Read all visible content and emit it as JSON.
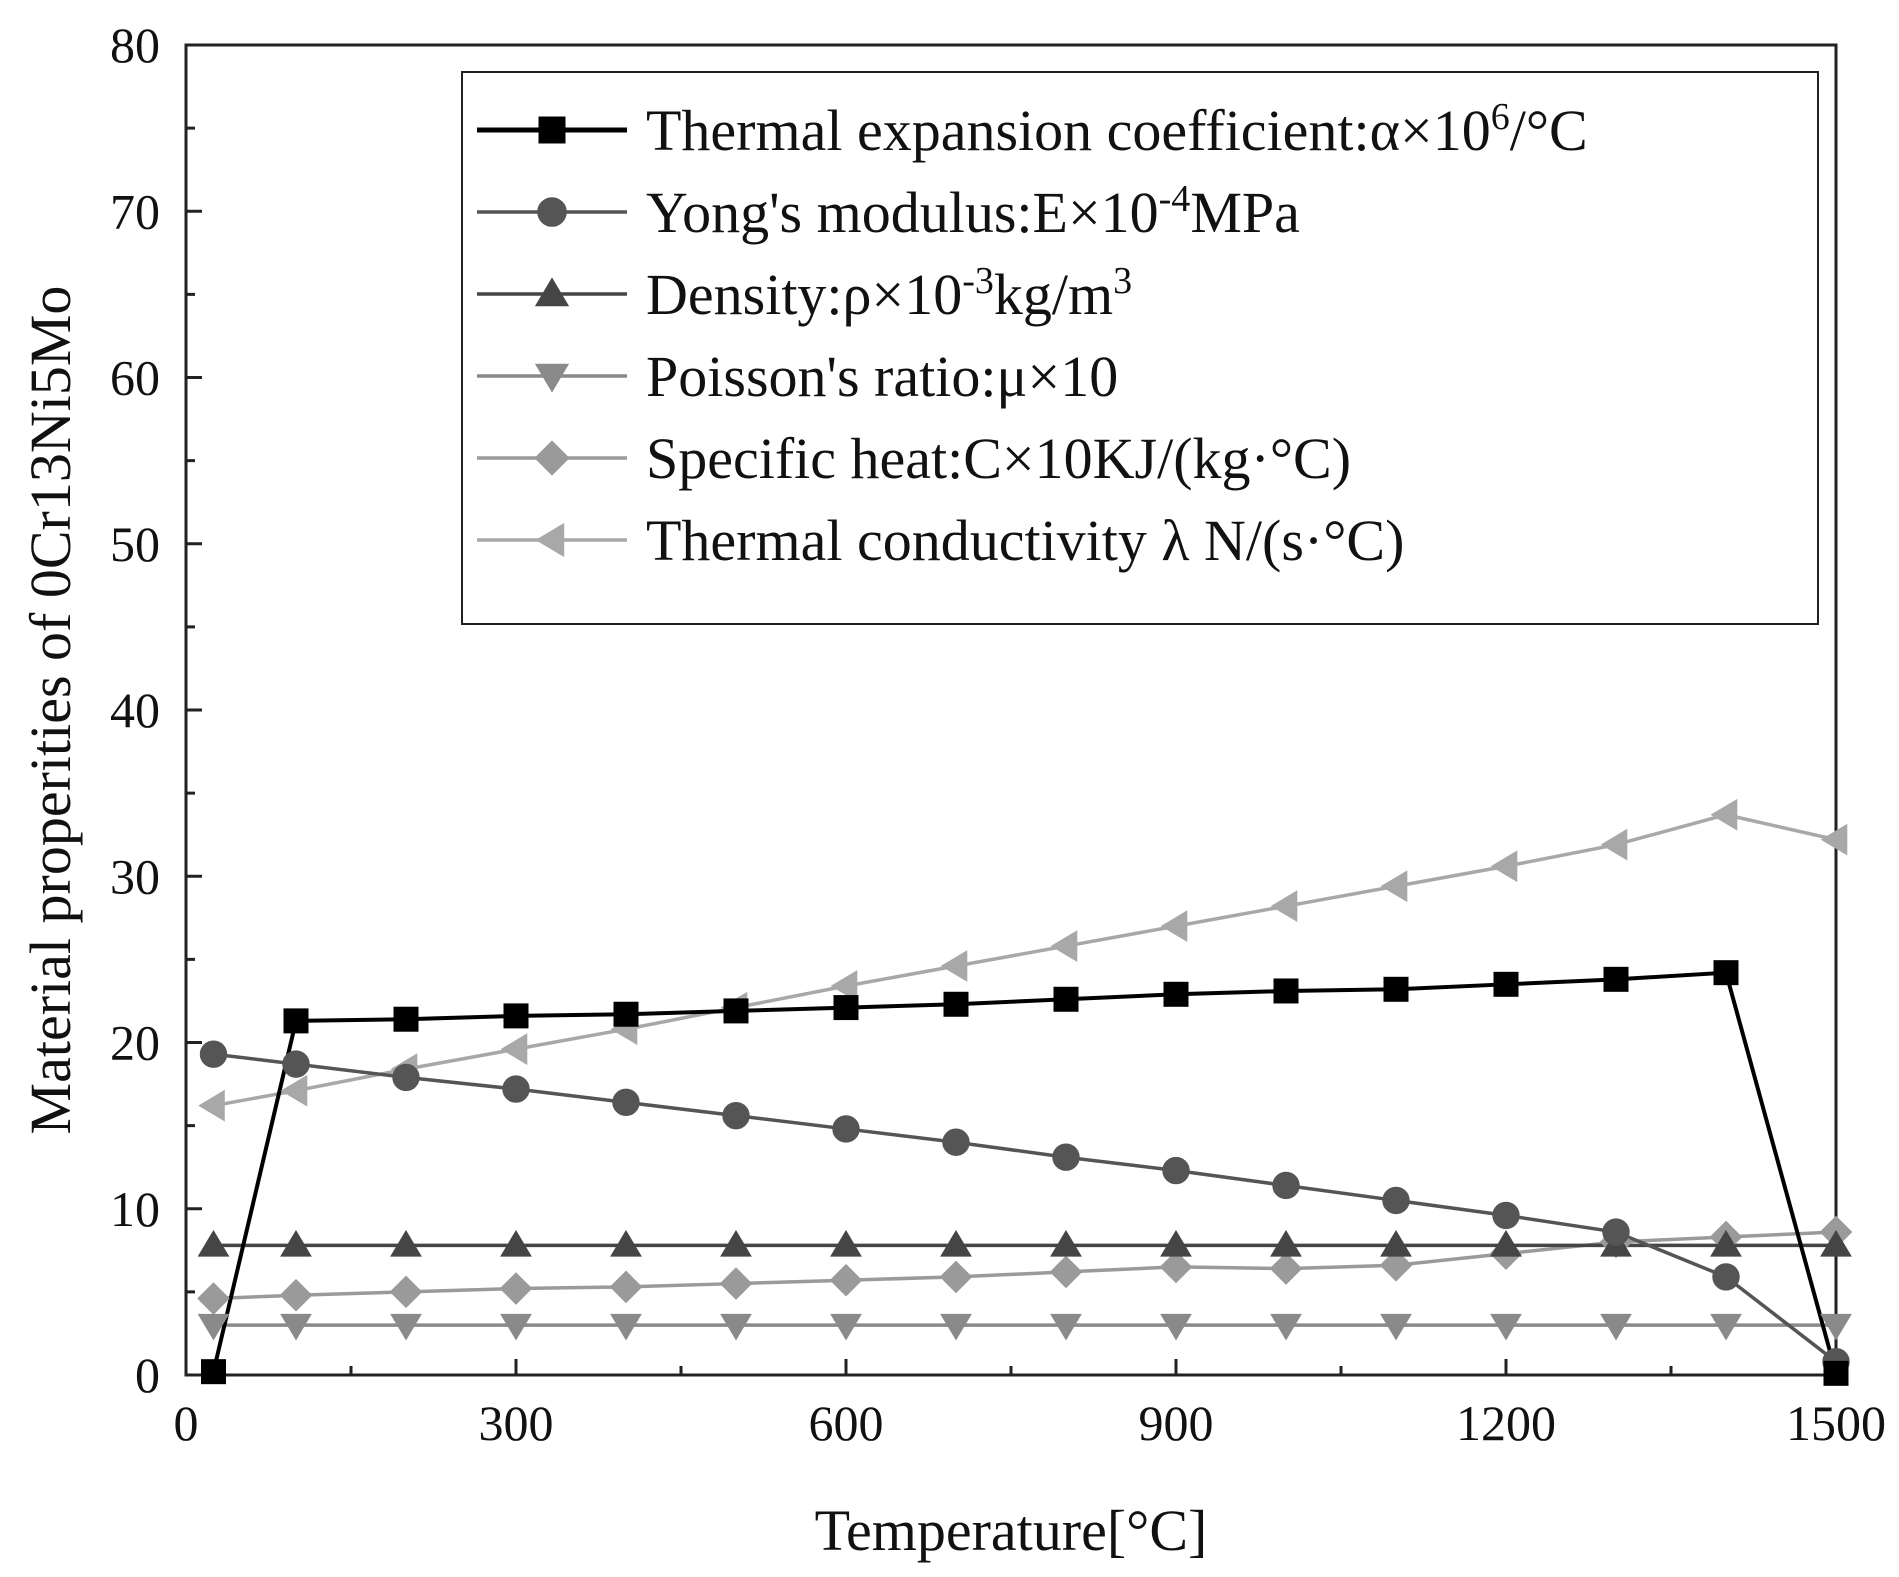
{
  "chart_data": {
    "type": "line",
    "title": "",
    "xlabel": "Temperature[°C]",
    "ylabel": "Material properities of 0Cr13Ni5Mo",
    "xlim": [
      0,
      1500
    ],
    "ylim": [
      0,
      80
    ],
    "xticks": [
      0,
      300,
      600,
      900,
      1200,
      1500
    ],
    "yticks": [
      0,
      10,
      20,
      30,
      40,
      50,
      60,
      70,
      80
    ],
    "grid": false,
    "legend_position": "top-right",
    "series": [
      {
        "name": "Thermal expansion coefficient:α×10⁶/°C",
        "label_base": "Thermal expansion coefficient:α×10",
        "label_sup": "6",
        "label_tail": "/°C",
        "marker": "square",
        "color": "#000000",
        "x": [
          25,
          100,
          200,
          300,
          400,
          500,
          600,
          700,
          800,
          900,
          1000,
          1100,
          1200,
          1300,
          1400,
          1500
        ],
        "y": [
          0.2,
          21.3,
          21.4,
          21.6,
          21.7,
          21.9,
          22.1,
          22.3,
          22.6,
          22.9,
          23.1,
          23.2,
          23.5,
          23.8,
          24.2,
          0.1
        ]
      },
      {
        "name": "Yong's modulus:E×10⁻⁴MPa",
        "label_base": "Yong's modulus:E×10",
        "label_sup": "-4",
        "label_tail": "MPa",
        "marker": "circle",
        "color": "#555555",
        "x": [
          25,
          100,
          200,
          300,
          400,
          500,
          600,
          700,
          800,
          900,
          1000,
          1100,
          1200,
          1300,
          1400,
          1500
        ],
        "y": [
          19.3,
          18.7,
          17.9,
          17.2,
          16.4,
          15.6,
          14.8,
          14.0,
          13.1,
          12.3,
          11.4,
          10.5,
          9.6,
          8.6,
          5.9,
          0.8
        ]
      },
      {
        "name": "Density:ρ×10⁻³kg/m³",
        "label_base": "Density:ρ×10",
        "label_sup": "-3",
        "label_tail": "kg/m",
        "label_sup2": "3",
        "marker": "triangle-up",
        "color": "#454545",
        "x": [
          25,
          100,
          200,
          300,
          400,
          500,
          600,
          700,
          800,
          900,
          1000,
          1100,
          1200,
          1300,
          1400,
          1500
        ],
        "y": [
          7.8,
          7.8,
          7.8,
          7.8,
          7.8,
          7.8,
          7.8,
          7.8,
          7.8,
          7.8,
          7.8,
          7.8,
          7.8,
          7.8,
          7.8,
          7.8
        ]
      },
      {
        "name": "Poisson's ratio:μ×10",
        "label_base": "Poisson's ratio:μ×10",
        "label_sup": "",
        "label_tail": "",
        "marker": "triangle-down",
        "color": "#8a8a8a",
        "x": [
          25,
          100,
          200,
          300,
          400,
          500,
          600,
          700,
          800,
          900,
          1000,
          1100,
          1200,
          1300,
          1400,
          1500
        ],
        "y": [
          3.0,
          3.0,
          3.0,
          3.0,
          3.0,
          3.0,
          3.0,
          3.0,
          3.0,
          3.0,
          3.0,
          3.0,
          3.0,
          3.0,
          3.0,
          3.0
        ]
      },
      {
        "name": "Specific heat:C×10KJ/(kg·°C)",
        "label_base": "Specific heat:C×10KJ/(kg·°C)",
        "label_sup": "",
        "label_tail": "",
        "marker": "diamond",
        "color": "#9a9a9a",
        "x": [
          25,
          100,
          200,
          300,
          400,
          500,
          600,
          700,
          800,
          900,
          1000,
          1100,
          1200,
          1300,
          1400,
          1500
        ],
        "y": [
          4.6,
          4.8,
          5.0,
          5.2,
          5.3,
          5.5,
          5.7,
          5.9,
          6.2,
          6.5,
          6.4,
          6.6,
          7.3,
          8.0,
          8.3,
          8.6
        ]
      },
      {
        "name": "Thermal conductivity λ N/(s·°C)",
        "label_base": "Thermal conductivity λ N/(s·°C)",
        "label_sup": "",
        "label_tail": "",
        "marker": "triangle-left",
        "color": "#a8a8a8",
        "x": [
          25,
          100,
          200,
          300,
          400,
          500,
          600,
          700,
          800,
          900,
          1000,
          1100,
          1200,
          1300,
          1400,
          1500
        ],
        "y": [
          16.2,
          17.1,
          18.4,
          19.6,
          20.8,
          22.1,
          23.4,
          24.6,
          25.8,
          27.0,
          28.2,
          29.4,
          30.6,
          31.9,
          33.7,
          32.2
        ]
      }
    ]
  }
}
